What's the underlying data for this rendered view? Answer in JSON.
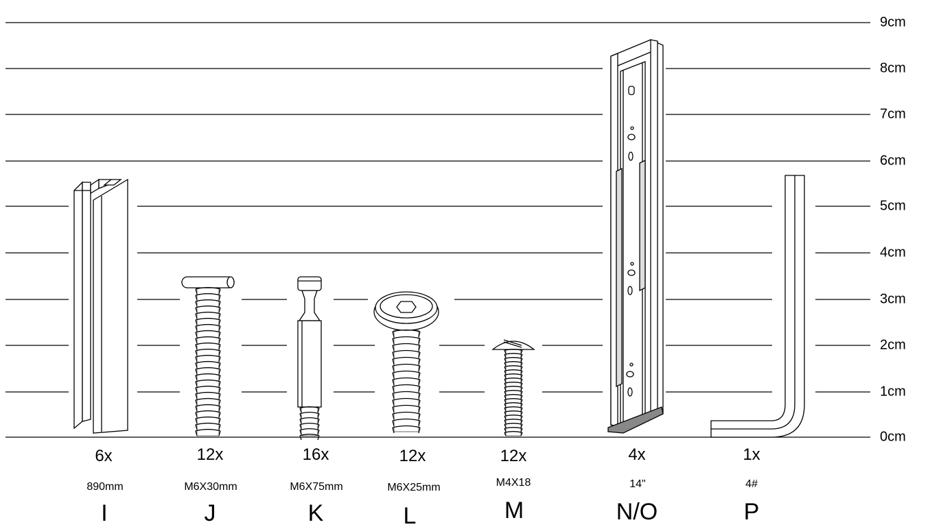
{
  "scale": {
    "unit": "cm",
    "labels": [
      "0cm",
      "1cm",
      "2cm",
      "3cm",
      "4cm",
      "5cm",
      "6cm",
      "7cm",
      "8cm",
      "9cm"
    ]
  },
  "parts": [
    {
      "id": "I",
      "qty": "6x",
      "spec": "890mm",
      "letter": "I",
      "icon": "h-beam-connector-icon"
    },
    {
      "id": "J",
      "qty": "12x",
      "spec": "M6X30mm",
      "letter": "J",
      "icon": "flat-head-bolt-icon"
    },
    {
      "id": "K",
      "qty": "16x",
      "spec": "M6X75mm",
      "letter": "K",
      "icon": "barrel-bolt-icon"
    },
    {
      "id": "L",
      "qty": "12x",
      "spec": "M6X25mm",
      "letter": "L",
      "icon": "hex-socket-button-screw-icon"
    },
    {
      "id": "M",
      "qty": "12x",
      "spec": "M4X18",
      "letter": "M",
      "icon": "slotted-screw-icon"
    },
    {
      "id": "NO",
      "qty": "4x",
      "spec": "14\"",
      "letter": "N/O",
      "icon": "drawer-slide-icon"
    },
    {
      "id": "P",
      "qty": "1x",
      "spec": "4#",
      "letter": "P",
      "icon": "allen-key-icon"
    }
  ],
  "colors": {
    "line": "#000000",
    "part_fill": "#ffffff",
    "shade": "#444444"
  }
}
